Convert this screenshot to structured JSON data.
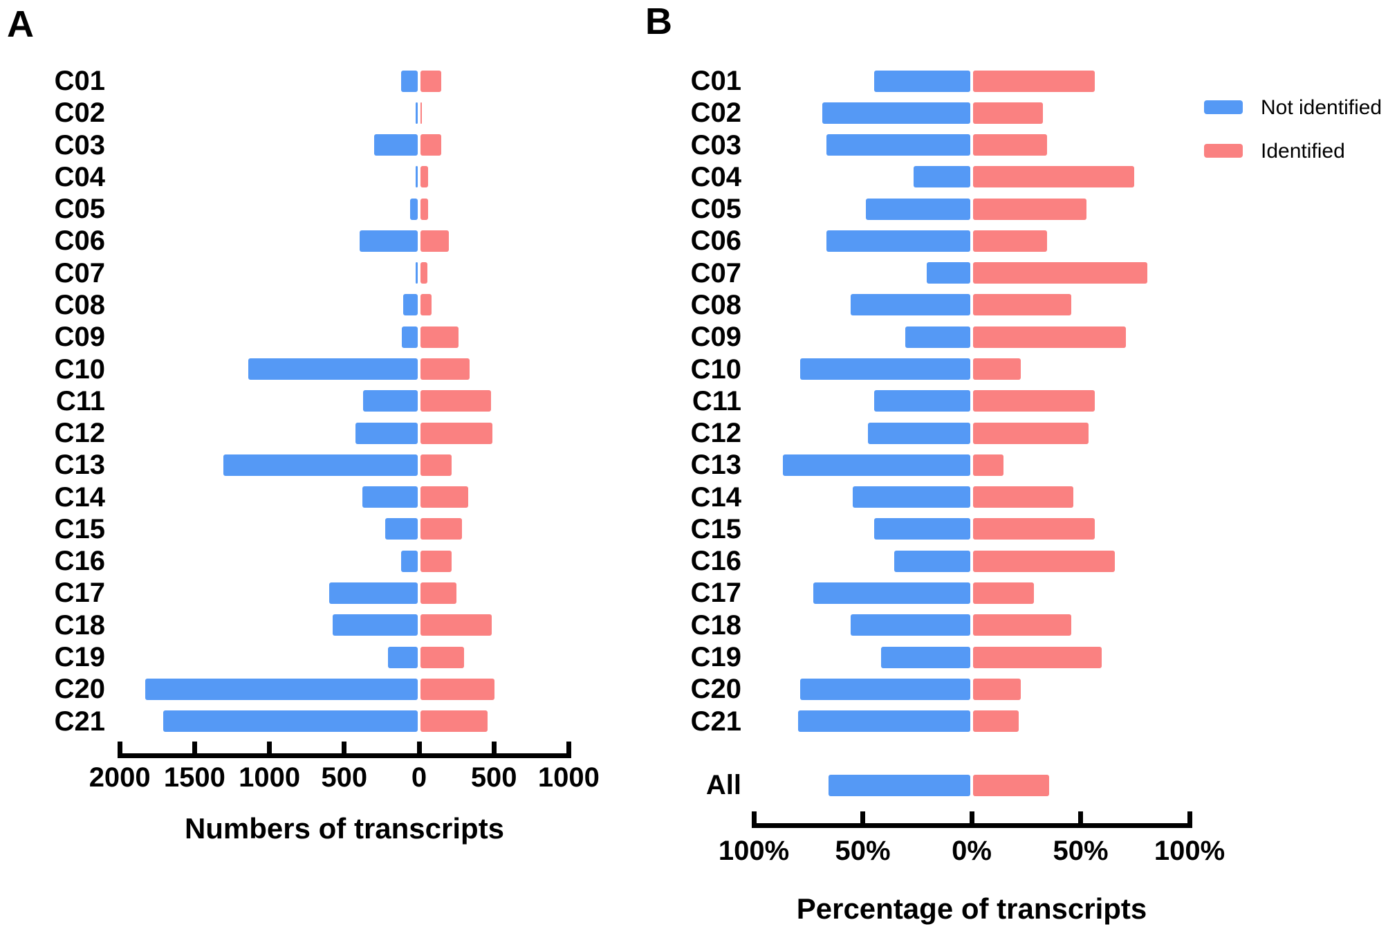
{
  "figure": {
    "panel_a_label": "A",
    "panel_b_label": "B",
    "colors": {
      "not_identified": "#5599F5",
      "identified": "#FA8181",
      "axis": "#000000"
    },
    "legend": {
      "items": [
        {
          "label": "Not identified",
          "color_key": "not_identified"
        },
        {
          "label": "Identified",
          "color_key": "identified"
        }
      ]
    }
  },
  "chart_data": [
    {
      "panel": "A",
      "type": "bar",
      "variant": "horizontal-diverging",
      "xlabel": "Numbers of transcripts",
      "categories": [
        "C01",
        "C02",
        "C03",
        "C04",
        "C05",
        "C06",
        "C07",
        "C08",
        "C09",
        "C10",
        "C11",
        "C12",
        "C13",
        "C14",
        "C15",
        "C16",
        "C17",
        "C18",
        "C19",
        "C20",
        "C21"
      ],
      "series": [
        {
          "name": "Not identified",
          "side": "left",
          "color_key": "not_identified",
          "values": [
            110,
            15,
            290,
            15,
            50,
            390,
            12,
            95,
            105,
            1130,
            365,
            415,
            1300,
            370,
            215,
            110,
            590,
            570,
            200,
            1820,
            1700
          ]
        },
        {
          "name": "Identified",
          "side": "right",
          "color_key": "identified",
          "values": [
            140,
            7,
            140,
            50,
            50,
            190,
            45,
            75,
            255,
            330,
            470,
            480,
            210,
            320,
            275,
            210,
            240,
            475,
            290,
            495,
            450
          ]
        }
      ],
      "x_ticks": [
        {
          "label": "2000",
          "value": -2000
        },
        {
          "label": "1500",
          "value": -1500
        },
        {
          "label": "1000",
          "value": -1000
        },
        {
          "label": "500",
          "value": -500
        },
        {
          "label": "0",
          "value": 0
        },
        {
          "label": "500",
          "value": 500
        },
        {
          "label": "1000",
          "value": 1000
        }
      ],
      "xlim": [
        -2000,
        1000
      ],
      "grid": false,
      "legend_position": "none"
    },
    {
      "panel": "B",
      "type": "bar",
      "variant": "horizontal-diverging",
      "xlabel": "Percentage of transcripts",
      "unit": "%",
      "categories": [
        "C01",
        "C02",
        "C03",
        "C04",
        "C05",
        "C06",
        "C07",
        "C08",
        "C09",
        "C10",
        "C11",
        "C12",
        "C13",
        "C14",
        "C15",
        "C16",
        "C17",
        "C18",
        "C19",
        "C20",
        "C21",
        "All"
      ],
      "series": [
        {
          "name": "Not identified",
          "side": "left",
          "color_key": "not_identified",
          "values": [
            44,
            68,
            66,
            26,
            48,
            66,
            20,
            55,
            30,
            78,
            44,
            47,
            86,
            54,
            44,
            35,
            72,
            55,
            41,
            78,
            79,
            65
          ]
        },
        {
          "name": "Identified",
          "side": "right",
          "color_key": "identified",
          "values": [
            56,
            32,
            34,
            74,
            52,
            34,
            80,
            45,
            70,
            22,
            56,
            53,
            14,
            46,
            56,
            65,
            28,
            45,
            59,
            22,
            21,
            35
          ]
        }
      ],
      "x_ticks": [
        {
          "label": "100%",
          "value": -100
        },
        {
          "label": "50%",
          "value": -50
        },
        {
          "label": "0%",
          "value": 0
        },
        {
          "label": "50%",
          "value": 50
        },
        {
          "label": "100%",
          "value": 100
        }
      ],
      "xlim": [
        -100,
        100
      ],
      "grid": false,
      "legend_position": "top-right"
    }
  ]
}
